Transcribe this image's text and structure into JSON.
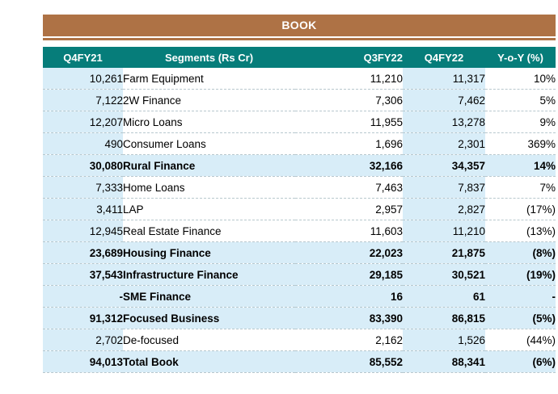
{
  "banner": {
    "title": "BOOK"
  },
  "chart_data": {
    "type": "table",
    "title": "BOOK",
    "units": "Rs Cr",
    "columns": [
      "Q4FY21",
      "Segments (Rs Cr)",
      "Q3FY22",
      "Q4FY22",
      "Y-o-Y (%)"
    ],
    "rows": [
      {
        "q4fy21": "10,261",
        "segment": "Farm Equipment",
        "q3fy22": "11,210",
        "q4fy22": "11,317",
        "yoy": "10%",
        "bold": false
      },
      {
        "q4fy21": "7,122",
        "segment": "2W Finance",
        "q3fy22": "7,306",
        "q4fy22": "7,462",
        "yoy": "5%",
        "bold": false
      },
      {
        "q4fy21": "12,207",
        "segment": "Micro Loans",
        "q3fy22": "11,955",
        "q4fy22": "13,278",
        "yoy": "9%",
        "bold": false
      },
      {
        "q4fy21": "490",
        "segment": "Consumer Loans",
        "q3fy22": "1,696",
        "q4fy22": "2,301",
        "yoy": "369%",
        "bold": false
      },
      {
        "q4fy21": "30,080",
        "segment": "Rural Finance",
        "q3fy22": "32,166",
        "q4fy22": "34,357",
        "yoy": "14%",
        "bold": true
      },
      {
        "q4fy21": "7,333",
        "segment": "Home Loans",
        "q3fy22": "7,463",
        "q4fy22": "7,837",
        "yoy": "7%",
        "bold": false
      },
      {
        "q4fy21": "3,411",
        "segment": "LAP",
        "q3fy22": "2,957",
        "q4fy22": "2,827",
        "yoy": "(17%)",
        "bold": false
      },
      {
        "q4fy21": "12,945",
        "segment": "Real Estate Finance",
        "q3fy22": "11,603",
        "q4fy22": "11,210",
        "yoy": "(13%)",
        "bold": false
      },
      {
        "q4fy21": "23,689",
        "segment": "Housing Finance",
        "q3fy22": "22,023",
        "q4fy22": "21,875",
        "yoy": "(8%)",
        "bold": true
      },
      {
        "q4fy21": "37,543",
        "segment": "Infrastructure Finance",
        "q3fy22": "29,185",
        "q4fy22": "30,521",
        "yoy": "(19%)",
        "bold": true
      },
      {
        "q4fy21": "-",
        "segment": "SME Finance",
        "q3fy22": "16",
        "q4fy22": "61",
        "yoy": "-",
        "bold": true
      },
      {
        "q4fy21": "91,312",
        "segment": "Focused Business",
        "q3fy22": "83,390",
        "q4fy22": "86,815",
        "yoy": "(5%)",
        "bold": true
      },
      {
        "q4fy21": "2,702",
        "segment": "De-focused",
        "q3fy22": "2,162",
        "q4fy22": "1,526",
        "yoy": "(44%)",
        "bold": false
      },
      {
        "q4fy21": "94,013",
        "segment": "Total Book",
        "q3fy22": "85,552",
        "q4fy22": "88,341",
        "yoy": "(6%)",
        "bold": true
      }
    ]
  },
  "colors": {
    "banner_brown": "#AE7245",
    "header_teal": "#067D7A",
    "highlight_blue": "#D8EDF8",
    "separator": "#B8C8CE",
    "header_text": "#FFFFFF",
    "body_text": "#000000"
  }
}
